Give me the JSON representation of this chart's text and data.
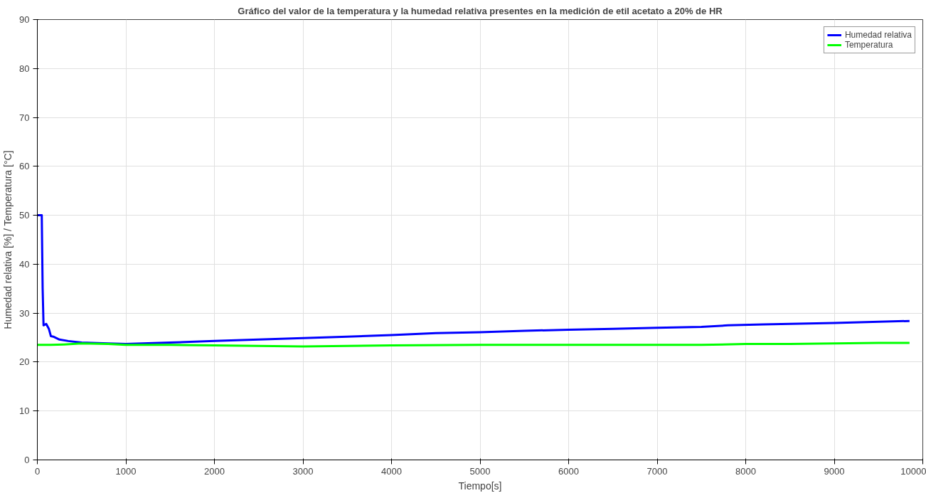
{
  "chart_data": {
    "type": "line",
    "title": "Gráfico del valor de la temperatura y la humedad relativa presentes en la medición de etil acetato a 20% de HR",
    "xlabel": "Tiempo[s]",
    "ylabel": "Humedad relativa [%] / Temperatura [°C]",
    "xlim": [
      0,
      10000
    ],
    "xticks": [
      0,
      1000,
      2000,
      3000,
      4000,
      5000,
      6000,
      7000,
      8000,
      9000,
      10000
    ],
    "ylim": [
      0,
      90
    ],
    "yticks": [
      0,
      10,
      20,
      30,
      40,
      50,
      60,
      70,
      80,
      90
    ],
    "grid": true,
    "legend": "top right",
    "line_style": "solid",
    "marker": "none",
    "series": [
      {
        "name": "Humedad relativa",
        "color": "#0000ff",
        "x": [
          0,
          50,
          60,
          70,
          100,
          130,
          153,
          180,
          250,
          350,
          500,
          800,
          1000,
          1500,
          2000,
          2500,
          3000,
          3500,
          4000,
          4500,
          5000,
          5500,
          6000,
          6500,
          7000,
          7500,
          7800,
          8200,
          9000,
          9850
        ],
        "values": [
          50,
          50,
          35,
          27.5,
          27.8,
          26.8,
          25.3,
          25.2,
          24.6,
          24.3,
          24.0,
          23.8,
          23.7,
          24.0,
          24.3,
          24.6,
          24.9,
          25.2,
          25.5,
          25.9,
          26.1,
          26.4,
          26.6,
          26.8,
          27.0,
          27.2,
          27.5,
          27.7,
          28.0,
          28.4
        ]
      },
      {
        "name": "Temperatura",
        "color": "#00ff00",
        "x": [
          0,
          150,
          300,
          500,
          800,
          1000,
          1500,
          2000,
          2500,
          3000,
          3500,
          4000,
          5000,
          6000,
          7000,
          7500,
          8000,
          8500,
          9000,
          9500,
          9850
        ],
        "values": [
          23.5,
          23.5,
          23.6,
          23.8,
          23.7,
          23.5,
          23.5,
          23.4,
          23.3,
          23.2,
          23.3,
          23.4,
          23.5,
          23.5,
          23.5,
          23.5,
          23.7,
          23.7,
          23.8,
          23.9,
          23.9
        ]
      }
    ]
  }
}
